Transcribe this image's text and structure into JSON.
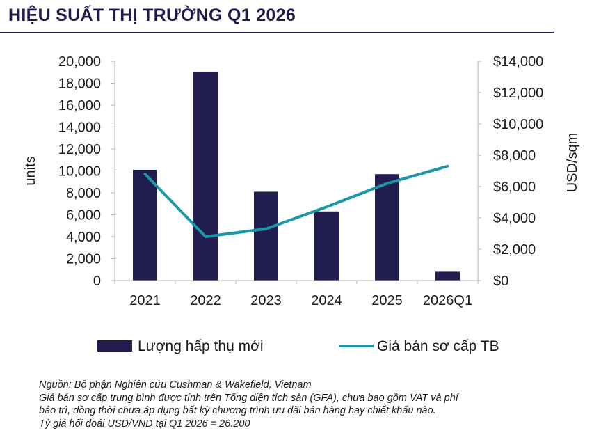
{
  "header": {
    "title": "HIỆU SUẤT THỊ TRƯỜNG Q1 2026"
  },
  "chart_data": {
    "type": "bar",
    "categories": [
      "2021",
      "2022",
      "2023",
      "2024",
      "2025",
      "2026Q1"
    ],
    "series": [
      {
        "name": "Lượng hấp thụ mới",
        "type": "bar",
        "axis": "left",
        "color": "#211d4e",
        "values": [
          10100,
          19000,
          8100,
          6300,
          9700,
          800
        ]
      },
      {
        "name": "Giá bán sơ cấp TB",
        "type": "line",
        "axis": "right",
        "color": "#1a98a8",
        "values": [
          6800,
          2800,
          3300,
          4700,
          6200,
          7300
        ]
      }
    ],
    "ylabel": "units",
    "ylim": [
      0,
      20000
    ],
    "yticks": [
      "0",
      "2,000",
      "4,000",
      "6,000",
      "8,000",
      "10,000",
      "12,000",
      "14,000",
      "16,000",
      "18,000",
      "20,000"
    ],
    "y2label": "USD/sqm",
    "y2lim": [
      0,
      14000
    ],
    "y2ticks": [
      "$0",
      "$2,000",
      "$4,000",
      "$6,000",
      "$8,000",
      "$10,000",
      "$12,000",
      "$14,000"
    ],
    "xlabel": "",
    "grid": false,
    "legend_position": "bottom"
  },
  "notes": [
    "Nguồn: Bộ phận Nghiên cứu Cushman & Wakefield, Vietnam",
    "Giá bán sơ cấp trung bình được tính trên Tổng diện tích sàn (GFA), chưa bao gồm VAT và phí",
    "bảo trì, đồng thời chưa áp dụng bất kỳ chương trình ưu đãi bán hàng hay chiết khấu nào.",
    "Tỷ giá hối đoái USD/VND tại Q1 2026 = 26.200"
  ]
}
